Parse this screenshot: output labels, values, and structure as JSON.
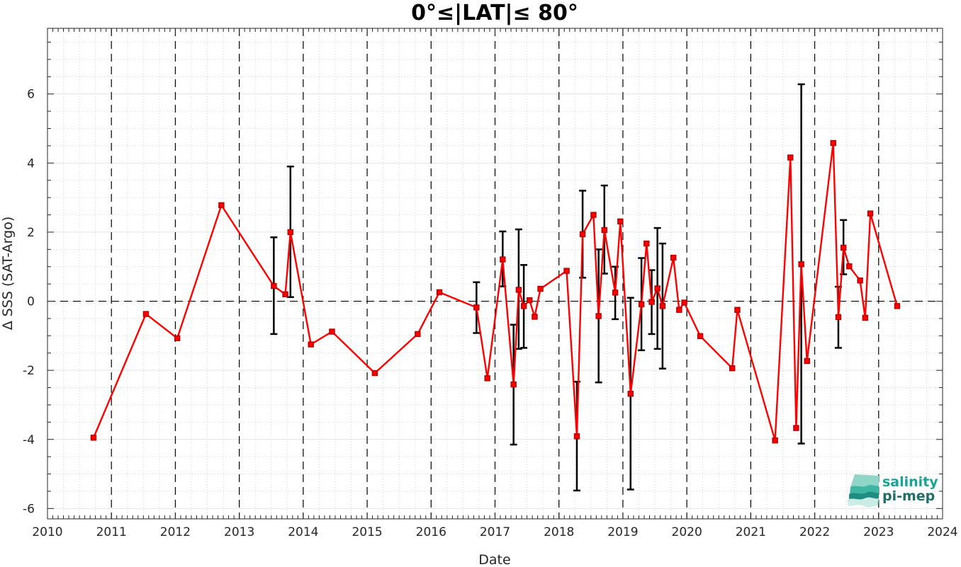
{
  "chart_data": {
    "type": "line",
    "title": "0°≤|LAT|≤ 80°",
    "xlabel": "Date",
    "ylabel": "Δ SSS (SAT-Argo)",
    "xlim": [
      2010,
      2024
    ],
    "ylim": [
      -6.3,
      7.9
    ],
    "x_ticks": [
      2010,
      2011,
      2012,
      2013,
      2014,
      2015,
      2016,
      2017,
      2018,
      2019,
      2020,
      2021,
      2022,
      2023,
      2024
    ],
    "x_tick_labels": [
      "2010",
      "2011",
      "2012",
      "2013",
      "2014",
      "2015",
      "2016",
      "2017",
      "2018",
      "2019",
      "2020",
      "2021",
      "2022",
      "2023",
      "2024"
    ],
    "y_ticks": [
      -6,
      -4,
      -2,
      0,
      2,
      4,
      6
    ],
    "y_tick_labels": [
      "-6",
      "-4",
      "-2",
      "0",
      "2",
      "4",
      "6"
    ],
    "grid": true,
    "year_separators": "dashed vertical lines at each year",
    "zero_line": "dashed horizontal line at 0",
    "colors": {
      "series": "#ff0000",
      "marker_edge": "#b00000",
      "errorbar": "#000000",
      "logo_teal": "#1aa295",
      "logo_dark": "#1f6e68"
    },
    "series": [
      {
        "x": [
          2010.72,
          2011.54,
          2012.03,
          2012.72,
          2013.54,
          2013.72,
          2013.8,
          2014.12,
          2014.45,
          2015.12,
          2015.79,
          2016.13,
          2016.71,
          2016.88,
          2017.12,
          2017.29,
          2017.37,
          2017.45,
          2017.54,
          2017.62,
          2017.71,
          2018.12,
          2018.28,
          2018.37,
          2018.54,
          2018.62,
          2018.71,
          2018.88,
          2018.96,
          2019.12,
          2019.29,
          2019.37,
          2019.45,
          2019.54,
          2019.62,
          2019.79,
          2019.88,
          2019.96,
          2020.21,
          2020.71,
          2020.79,
          2021.38,
          2021.62,
          2021.71,
          2021.79,
          2021.88,
          2022.29,
          2022.37,
          2022.45,
          2022.54,
          2022.71,
          2022.79,
          2022.87,
          2023.29
        ],
        "values": [
          -3.95,
          -0.37,
          -1.07,
          2.78,
          0.44,
          0.2,
          2.0,
          -1.25,
          -0.88,
          -2.08,
          -0.95,
          0.26,
          -0.18,
          -2.23,
          1.21,
          -2.41,
          0.33,
          -0.14,
          0.03,
          -0.45,
          0.36,
          0.88,
          -3.91,
          1.94,
          2.5,
          -0.43,
          2.06,
          0.25,
          2.31,
          -2.68,
          -0.09,
          1.67,
          -0.02,
          0.37,
          -0.14,
          1.26,
          -0.25,
          -0.04,
          -1.01,
          -1.94,
          -0.25,
          -4.03,
          4.16,
          -3.67,
          1.07,
          -1.73,
          4.58,
          -0.46,
          1.55,
          1.01,
          0.6,
          -0.48,
          2.54,
          -0.14
        ]
      }
    ],
    "error_bars": [
      {
        "x": 2013.54,
        "low": -0.95,
        "high": 1.85
      },
      {
        "x": 2013.8,
        "low": 0.12,
        "high": 3.9
      },
      {
        "x": 2016.71,
        "low": -0.92,
        "high": 0.55
      },
      {
        "x": 2017.12,
        "low": 0.43,
        "high": 2.02
      },
      {
        "x": 2017.29,
        "low": -4.15,
        "high": -0.68
      },
      {
        "x": 2017.37,
        "low": -1.38,
        "high": 2.08
      },
      {
        "x": 2017.45,
        "low": -1.35,
        "high": 1.05
      },
      {
        "x": 2018.28,
        "low": -5.48,
        "high": -2.33
      },
      {
        "x": 2018.37,
        "low": 0.68,
        "high": 3.2
      },
      {
        "x": 2018.62,
        "low": -2.35,
        "high": 1.5
      },
      {
        "x": 2018.71,
        "low": 0.8,
        "high": 3.35
      },
      {
        "x": 2018.88,
        "low": -0.52,
        "high": 1.0
      },
      {
        "x": 2019.12,
        "low": -5.45,
        "high": 0.1
      },
      {
        "x": 2019.29,
        "low": -1.42,
        "high": 1.25
      },
      {
        "x": 2019.45,
        "low": -0.95,
        "high": 0.9
      },
      {
        "x": 2019.54,
        "low": -1.38,
        "high": 2.12
      },
      {
        "x": 2019.62,
        "low": -1.95,
        "high": 1.67
      },
      {
        "x": 2021.79,
        "low": -4.12,
        "high": 6.28
      },
      {
        "x": 2022.37,
        "low": -1.35,
        "high": 0.42
      },
      {
        "x": 2022.45,
        "low": 0.78,
        "high": 2.35
      }
    ]
  },
  "logo": {
    "line1": "salinity",
    "line2": "pi-mep"
  }
}
